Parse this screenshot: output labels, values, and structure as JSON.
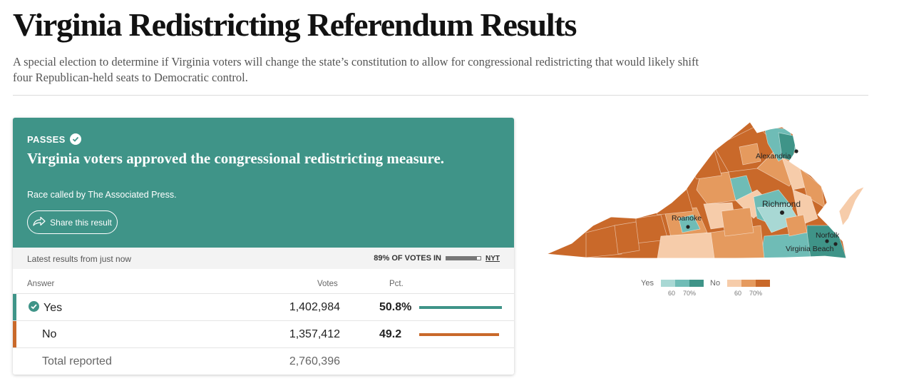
{
  "header": {
    "title": "Virginia Redistricting Referendum Results",
    "dek": "A special election to determine if Virginia voters will change the state’s constitution to allow for congressional redistricting that would likely shift four Republican-held seats to Democratic control."
  },
  "result": {
    "status": "PASSES",
    "status_icon": "check-icon",
    "headline": "Virginia voters approved the congressional redistricting measure.",
    "called_by": "Race called by The Associated Press.",
    "share_label": "Share this result",
    "share_icon": "share-arrow-icon",
    "color": "#3f9488"
  },
  "reporting": {
    "latest": "Latest results from just now",
    "votes_in": "89% OF VOTES IN",
    "votes_in_fraction": 0.89,
    "source": "NYT"
  },
  "table": {
    "headers": {
      "answer": "Answer",
      "votes": "Votes",
      "pct": "Pct."
    },
    "rows": [
      {
        "answer": "Yes",
        "votes": "1,402,984",
        "pct": "50.8%",
        "share": 0.508,
        "color": "#3f9488",
        "winner": true
      },
      {
        "answer": "No",
        "votes": "1,357,412",
        "pct": "49.2",
        "share": 0.492,
        "color": "#c9692a",
        "winner": false
      }
    ],
    "total": {
      "label": "Total reported",
      "votes": "2,760,396"
    }
  },
  "map": {
    "cities": {
      "alexandria": "Alexandria",
      "richmond": "Richmond",
      "roanoke": "Roanoke",
      "norfolk": "Norfolk",
      "virginia_beach": "Virginia Beach"
    },
    "colors": {
      "yes": [
        "#a8d8d4",
        "#6fbcb6",
        "#3f9488"
      ],
      "no": [
        "#f6ccaa",
        "#e59a5e",
        "#c9692a"
      ]
    }
  },
  "legend": {
    "yes_label": "Yes",
    "no_label": "No",
    "tick_60": "60",
    "tick_70": "70%"
  }
}
